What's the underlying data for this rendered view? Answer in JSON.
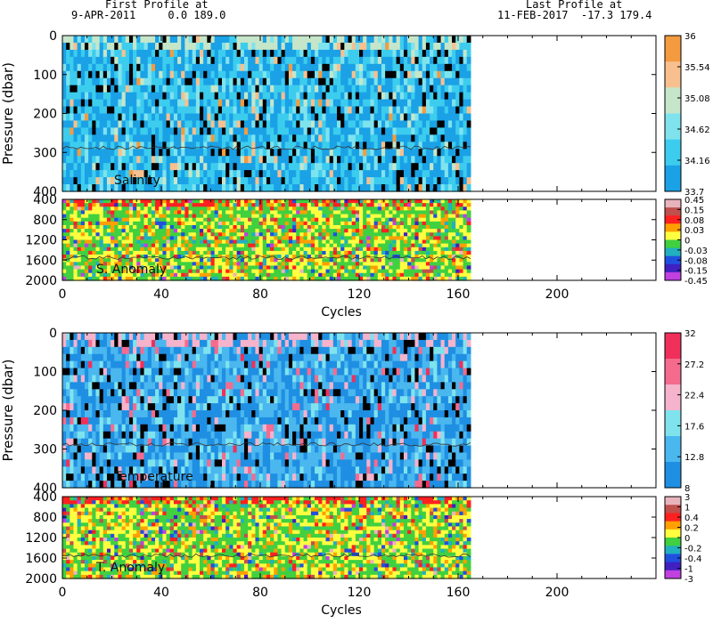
{
  "header": {
    "first_label": "First Profile at",
    "first_info": "9-APR-2011     0.0 189.0",
    "last_label": "Last Profile at",
    "last_info": "11-FEB-2017  -17.3 179.4"
  },
  "chart_data": [
    {
      "type": "heatmap",
      "name_label": "Salinity",
      "ylabel": "Pressure (dbar)",
      "xlabel": "",
      "xlim": [
        0,
        240
      ],
      "ylim": [
        400,
        0
      ],
      "data_x_extent": [
        0,
        165
      ],
      "yticks": [
        "0",
        "100",
        "200",
        "300",
        "400"
      ],
      "xticks": [],
      "colorbar_ticks": [
        "36",
        "35.54",
        "35.08",
        "34.62",
        "34.16",
        "33.7"
      ],
      "colorbar_colors": [
        "#f49b3f",
        "#f7c08e",
        "#c6e6c9",
        "#7fe3ee",
        "#3ccdee",
        "#1aa1e6"
      ]
    },
    {
      "type": "heatmap",
      "name_label": "S. Anomaly",
      "ylabel": "",
      "xlabel": "Cycles",
      "xlim": [
        0,
        240
      ],
      "ylim": [
        2000,
        400
      ],
      "data_x_extent": [
        0,
        165
      ],
      "yticks": [
        "400",
        "800",
        "1200",
        "1600",
        "2000"
      ],
      "xticks": [
        "0",
        "40",
        "80",
        "120",
        "160",
        "200"
      ],
      "colorbar_ticks": [
        "0.45",
        "0.15",
        "0.08",
        "0.03",
        "0",
        "-0.03",
        "-0.08",
        "-0.15",
        "-0.45"
      ],
      "colorbar_colors": [
        "#e8b4bc",
        "#c0504d",
        "#ff2020",
        "#ffa000",
        "#ffff40",
        "#40d040",
        "#20b0c0",
        "#2050e0",
        "#4020c0",
        "#c040e0"
      ]
    },
    {
      "type": "heatmap",
      "name_label": "Temperature",
      "ylabel": "Pressure (dbar)",
      "xlabel": "",
      "xlim": [
        0,
        240
      ],
      "ylim": [
        400,
        0
      ],
      "data_x_extent": [
        0,
        165
      ],
      "yticks": [
        "0",
        "100",
        "200",
        "300",
        "400"
      ],
      "xticks": [],
      "colorbar_ticks": [
        "32",
        "27.2",
        "22.4",
        "17.6",
        "12.8",
        "8"
      ],
      "colorbar_colors": [
        "#f0305a",
        "#f56b8e",
        "#f5b3cc",
        "#7fe3ee",
        "#4ab7ef",
        "#1f8fe3"
      ]
    },
    {
      "type": "heatmap",
      "name_label": "T. Anomaly",
      "ylabel": "",
      "xlabel": "Cycles",
      "xlim": [
        0,
        240
      ],
      "ylim": [
        2000,
        400
      ],
      "data_x_extent": [
        0,
        165
      ],
      "yticks": [
        "400",
        "800",
        "1200",
        "1600",
        "2000"
      ],
      "xticks": [
        "0",
        "40",
        "80",
        "120",
        "160",
        "200"
      ],
      "colorbar_ticks": [
        "3",
        "1",
        "0.4",
        "0.2",
        "0",
        "-0.2",
        "-0.4",
        "-1",
        "-3"
      ],
      "colorbar_colors": [
        "#e8b4bc",
        "#c0504d",
        "#ff2020",
        "#ffa000",
        "#ffff40",
        "#40d040",
        "#20b0c0",
        "#2050e0",
        "#4020c0",
        "#c040e0"
      ]
    }
  ]
}
